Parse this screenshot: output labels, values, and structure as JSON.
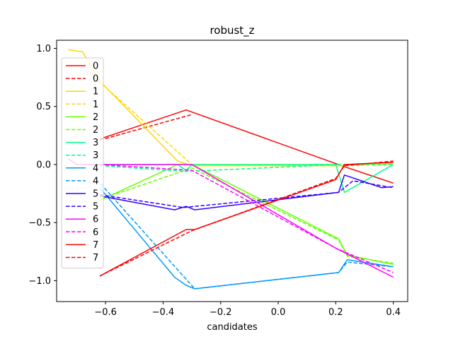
{
  "chart_data": {
    "type": "line",
    "title": "robust_z",
    "xlabel": "candidates",
    "ylabel": "",
    "xlim": [
      -0.77,
      0.45
    ],
    "ylim": [
      -1.18,
      1.07
    ],
    "xticks": [
      -0.6,
      -0.4,
      -0.2,
      0.0,
      0.2,
      0.4
    ],
    "xtick_labels": [
      "−0.6",
      "−0.4",
      "−0.2",
      "0.0",
      "0.2",
      "0.4"
    ],
    "yticks": [
      -1.0,
      -0.5,
      0.0,
      0.5,
      1.0
    ],
    "ytick_labels": [
      "−1.0",
      "−0.5",
      "0.0",
      "0.5",
      "1.0"
    ],
    "legend": {
      "placement": "upper-left"
    },
    "series": [
      {
        "name": "0",
        "color": "#ff0000",
        "dash": "solid",
        "points": [
          [
            -0.62,
            0.22
          ],
          [
            -0.32,
            0.47
          ],
          [
            0.22,
            -0.01
          ],
          [
            0.4,
            -0.16
          ]
        ]
      },
      {
        "name": "0",
        "color": "#ff0000",
        "dash": "dashed",
        "points": [
          [
            -0.62,
            0.21
          ],
          [
            -0.3,
            0.43
          ]
        ]
      },
      {
        "name": "1",
        "color": "#ffd700",
        "dash": "solid",
        "points": [
          [
            -0.73,
            0.99
          ],
          [
            -0.68,
            0.97
          ],
          [
            -0.62,
            0.72
          ],
          [
            -0.35,
            0.03
          ],
          [
            -0.3,
            -0.01
          ],
          [
            0.22,
            -0.01
          ],
          [
            0.4,
            0.01
          ]
        ]
      },
      {
        "name": "1",
        "color": "#ffd700",
        "dash": "dashed",
        "points": [
          [
            -0.67,
            0.82
          ],
          [
            -0.3,
            0.0
          ],
          [
            0.22,
            -0.01
          ],
          [
            0.4,
            0.0
          ]
        ]
      },
      {
        "name": "2",
        "color": "#66ff00",
        "dash": "solid",
        "points": [
          [
            -0.62,
            -0.31
          ],
          [
            -0.35,
            0.0
          ],
          [
            -0.3,
            0.0
          ],
          [
            0.21,
            -0.64
          ],
          [
            0.24,
            -0.78
          ],
          [
            0.4,
            -0.86
          ]
        ]
      },
      {
        "name": "2",
        "color": "#66ff00",
        "dash": "dashed",
        "points": [
          [
            -0.62,
            -0.3
          ],
          [
            -0.3,
            -0.03
          ],
          [
            0.21,
            -0.65
          ],
          [
            0.24,
            -0.79
          ],
          [
            0.4,
            -0.85
          ]
        ]
      },
      {
        "name": "3",
        "color": "#00ff88",
        "dash": "solid",
        "points": [
          [
            -0.62,
            0.0
          ],
          [
            -0.35,
            0.0
          ],
          [
            -0.32,
            -0.05
          ],
          [
            -0.3,
            0.0
          ],
          [
            0.2,
            0.0
          ],
          [
            0.23,
            -0.24
          ],
          [
            0.4,
            0.0
          ]
        ]
      },
      {
        "name": "3",
        "color": "#00ff88",
        "dash": "dashed",
        "points": [
          [
            -0.62,
            -0.01
          ],
          [
            -0.32,
            -0.06
          ],
          [
            0.2,
            0.0
          ],
          [
            0.4,
            0.0
          ]
        ]
      },
      {
        "name": "4",
        "color": "#0099ff",
        "dash": "solid",
        "points": [
          [
            -0.62,
            -0.2
          ],
          [
            -0.36,
            -0.97
          ],
          [
            -0.32,
            -1.04
          ],
          [
            -0.29,
            -1.07
          ],
          [
            0.21,
            -0.93
          ],
          [
            0.24,
            -0.82
          ],
          [
            0.4,
            -0.88
          ]
        ]
      },
      {
        "name": "4",
        "color": "#0099ff",
        "dash": "dashed",
        "points": [
          [
            -0.63,
            -0.13
          ],
          [
            -0.29,
            -1.07
          ],
          [
            0.21,
            -0.93
          ],
          [
            0.24,
            -0.84
          ],
          [
            0.4,
            -0.88
          ]
        ]
      },
      {
        "name": "5",
        "color": "#3300ff",
        "dash": "solid",
        "points": [
          [
            -0.62,
            -0.27
          ],
          [
            -0.36,
            -0.39
          ],
          [
            -0.32,
            -0.36
          ],
          [
            -0.29,
            -0.39
          ],
          [
            0.21,
            -0.24
          ],
          [
            0.23,
            -0.09
          ],
          [
            0.36,
            -0.2
          ],
          [
            0.4,
            -0.19
          ]
        ]
      },
      {
        "name": "5",
        "color": "#3300ff",
        "dash": "dashed",
        "points": [
          [
            -0.62,
            -0.26
          ],
          [
            -0.33,
            -0.37
          ],
          [
            0.21,
            -0.24
          ],
          [
            0.26,
            -0.14
          ],
          [
            0.4,
            -0.2
          ]
        ]
      },
      {
        "name": "6",
        "color": "#ff00ff",
        "dash": "solid",
        "points": [
          [
            -0.73,
            0.05
          ],
          [
            -0.7,
            0.0
          ],
          [
            -0.3,
            0.0
          ],
          [
            0.2,
            -0.72
          ],
          [
            0.4,
            -0.97
          ]
        ]
      },
      {
        "name": "6",
        "color": "#ff00ff",
        "dash": "dashed",
        "points": [
          [
            -0.62,
            0.0
          ],
          [
            -0.3,
            -0.05
          ],
          [
            0.2,
            -0.72
          ],
          [
            0.4,
            -0.93
          ]
        ]
      },
      {
        "name": "7",
        "color": "#ff0000",
        "dash": "solid",
        "points": [
          [
            -0.62,
            -0.96
          ],
          [
            -0.32,
            -0.56
          ],
          [
            -0.29,
            -0.56
          ],
          [
            0.2,
            -0.13
          ],
          [
            0.23,
            0.0
          ],
          [
            0.4,
            0.02
          ]
        ]
      },
      {
        "name": "7",
        "color": "#ff0000",
        "dash": "dashed",
        "points": [
          [
            -0.62,
            -0.96
          ],
          [
            -0.3,
            -0.57
          ],
          [
            0.2,
            -0.12
          ],
          [
            0.23,
            -0.01
          ],
          [
            0.4,
            0.03
          ]
        ]
      }
    ]
  }
}
